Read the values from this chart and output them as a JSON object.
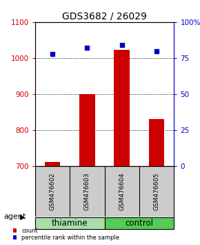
{
  "title": "GDS3682 / 26029",
  "samples": [
    "GSM476602",
    "GSM476603",
    "GSM476604",
    "GSM476605"
  ],
  "counts": [
    712,
    900,
    1022,
    830
  ],
  "percentiles": [
    78,
    82,
    84,
    80
  ],
  "ylim_left": [
    700,
    1100
  ],
  "ylim_right": [
    0,
    100
  ],
  "yticks_left": [
    700,
    800,
    900,
    1000,
    1100
  ],
  "yticks_right": [
    0,
    25,
    50,
    75,
    100
  ],
  "ytick_labels_right": [
    "0",
    "25",
    "50",
    "75",
    "100%"
  ],
  "bar_color": "#cc0000",
  "dot_color": "#0000cc",
  "groups": [
    {
      "label": "thiamine",
      "samples": [
        0,
        1
      ],
      "color": "#aaddaa"
    },
    {
      "label": "control",
      "samples": [
        2,
        3
      ],
      "color": "#55cc55"
    }
  ],
  "agent_label": "agent",
  "legend_count_label": "count",
  "legend_percentile_label": "percentile rank within the sample",
  "title_fontsize": 10,
  "tick_fontsize": 7.5,
  "sample_fontsize": 6.5,
  "group_fontsize": 8.5,
  "agent_fontsize": 8,
  "background_color": "#ffffff",
  "plot_bg": "#ffffff",
  "gridline_ticks": [
    800,
    900,
    1000
  ]
}
